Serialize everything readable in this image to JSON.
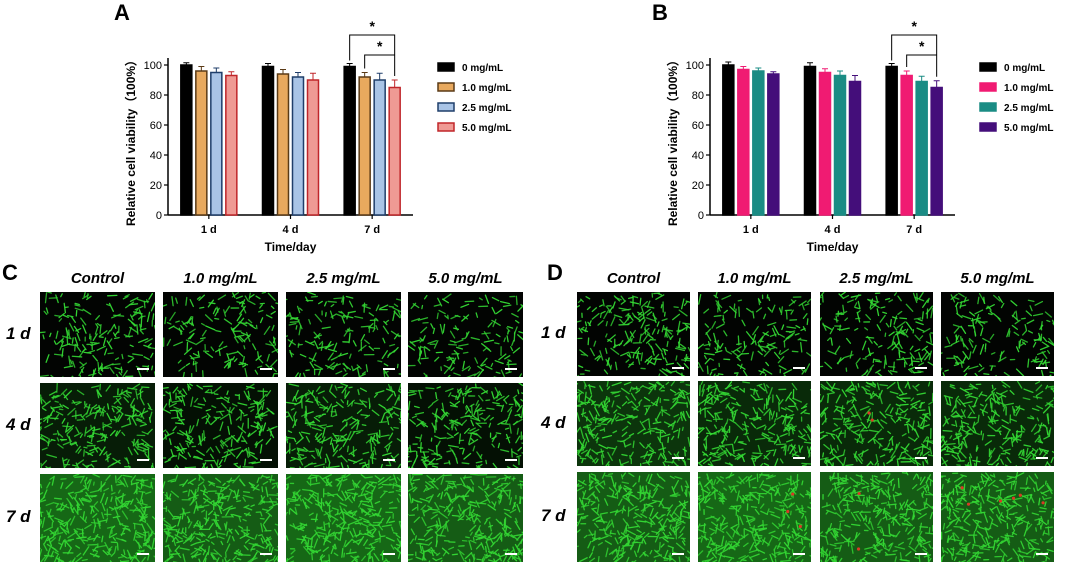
{
  "panels": {
    "A": {
      "letter": "A",
      "chart_data": {
        "type": "bar",
        "categories": [
          "1 d",
          "4 d",
          "7 d"
        ],
        "series": [
          {
            "name": "0 mg/mL",
            "values": [
              100,
              99,
              99
            ],
            "errors": [
              1.5,
              2,
              2
            ],
            "color": "#000000",
            "edge": "#000000"
          },
          {
            "name": "1.0 mg/mL",
            "values": [
              96,
              94,
              92
            ],
            "errors": [
              3,
              3,
              3
            ],
            "color": "#e8a95e",
            "edge": "#5a3a16"
          },
          {
            "name": "2.5 mg/mL",
            "values": [
              95,
              92,
              90
            ],
            "errors": [
              3,
              3,
              4.5
            ],
            "color": "#a9c4e6",
            "edge": "#1f3e6a"
          },
          {
            "name": "5.0 mg/mL",
            "values": [
              93,
              90,
              85
            ],
            "errors": [
              2.5,
              4.5,
              5
            ],
            "color": "#ef9a94",
            "edge": "#c0262a"
          }
        ],
        "xlabel": "Time/day",
        "ylabel": "Relative cell viability（100%）",
        "ylim": [
          0,
          100
        ],
        "yticks": [
          0,
          20,
          40,
          60,
          80,
          100
        ],
        "significance": [
          "*",
          "*"
        ],
        "legend_position": "right"
      }
    },
    "B": {
      "letter": "B",
      "chart_data": {
        "type": "bar",
        "categories": [
          "1 d",
          "4 d",
          "7 d"
        ],
        "series": [
          {
            "name": "0 mg/mL",
            "values": [
              100,
              99,
              99
            ],
            "errors": [
              2,
              2.5,
              2
            ],
            "color": "#000000",
            "edge": "#000000"
          },
          {
            "name": "1.0 mg/mL",
            "values": [
              97,
              95,
              93
            ],
            "errors": [
              2,
              2.5,
              3
            ],
            "color": "#f01b72",
            "edge": "#f01b72"
          },
          {
            "name": "2.5 mg/mL",
            "values": [
              96,
              93,
              89
            ],
            "errors": [
              2,
              3,
              3.5
            ],
            "color": "#1a8c84",
            "edge": "#1a8c84"
          },
          {
            "name": "5.0 mg/mL",
            "values": [
              94,
              89,
              85
            ],
            "errors": [
              1.5,
              4,
              4.5
            ],
            "color": "#440e7a",
            "edge": "#440e7a"
          }
        ],
        "xlabel": "Time/day",
        "ylabel": "Relative cell viability（100%）",
        "ylim": [
          0,
          100
        ],
        "yticks": [
          0,
          20,
          40,
          60,
          80,
          100
        ],
        "significance": [
          "*",
          "*"
        ],
        "legend_position": "right"
      }
    },
    "C": {
      "letter": "C",
      "columns": [
        "Control",
        "1.0 mg/mL",
        "2.5 mg/mL",
        "5.0 mg/mL"
      ],
      "rows": [
        "1 d",
        "4 d",
        "7 d"
      ],
      "density": [
        [
          0.45,
          0.35,
          0.35,
          0.3
        ],
        [
          0.65,
          0.6,
          0.65,
          0.6
        ],
        [
          0.95,
          0.9,
          0.95,
          0.9
        ]
      ],
      "red": [
        [
          0,
          0,
          0,
          0
        ],
        [
          0,
          0,
          0,
          0
        ],
        [
          0,
          0,
          0,
          0
        ]
      ]
    },
    "D": {
      "letter": "D",
      "columns": [
        "Control",
        "1.0 mg/mL",
        "2.5 mg/mL",
        "5.0 mg/mL"
      ],
      "rows": [
        "1 d",
        "4 d",
        "7 d"
      ],
      "density": [
        [
          0.5,
          0.35,
          0.4,
          0.35
        ],
        [
          0.75,
          0.7,
          0.7,
          0.7
        ],
        [
          0.9,
          0.95,
          0.9,
          0.9
        ]
      ],
      "red": [
        [
          0,
          0,
          0,
          0
        ],
        [
          0,
          0,
          2,
          0
        ],
        [
          0,
          3,
          2,
          6
        ]
      ]
    }
  },
  "colors": {
    "cell_green": "#33d633",
    "cell_dense": "#28b828",
    "dead_red": "#d83a26",
    "background": "#020402"
  }
}
